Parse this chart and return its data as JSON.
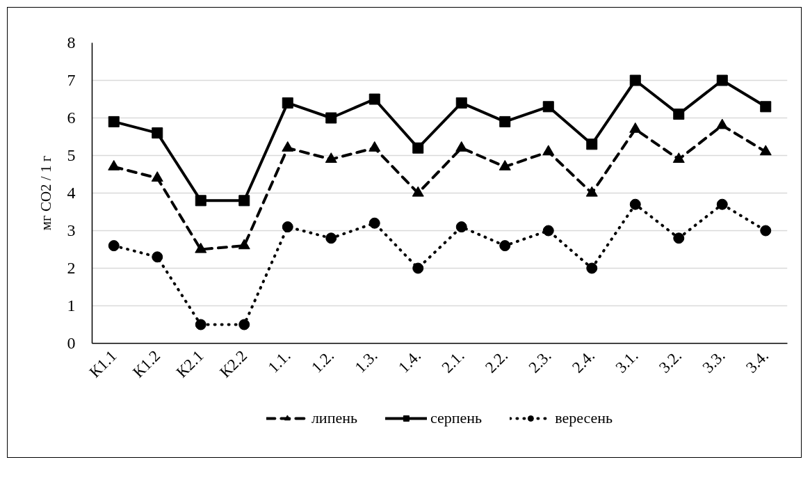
{
  "chart_data": {
    "type": "line",
    "ylabel": "мг CO2 / 1 г",
    "categories": [
      "К1.1",
      "К1.2",
      "К2.1",
      "К2.2",
      "1.1.",
      "1.2.",
      "1.3.",
      "1.4.",
      "2.1.",
      "2.2.",
      "2.3.",
      "2.4.",
      "3.1.",
      "3.2.",
      "3.3.",
      "3.4."
    ],
    "ylim": [
      0,
      8
    ],
    "yticks": [
      0,
      1,
      2,
      3,
      4,
      5,
      6,
      7,
      8
    ],
    "grid": "y",
    "legend": "bottom",
    "series": [
      {
        "name": "липень",
        "color": "#000000",
        "line_style": "dashed",
        "marker": "triangle",
        "values": [
          4.7,
          4.4,
          2.5,
          2.6,
          5.2,
          4.9,
          5.2,
          4.0,
          5.2,
          4.7,
          5.1,
          4.0,
          5.7,
          4.9,
          5.8,
          5.1
        ]
      },
      {
        "name": "серпень",
        "color": "#000000",
        "line_style": "solid",
        "marker": "square",
        "values": [
          5.9,
          5.6,
          3.8,
          3.8,
          6.4,
          6.0,
          6.5,
          5.2,
          6.4,
          5.9,
          6.3,
          5.3,
          7.0,
          6.1,
          7.0,
          6.3
        ]
      },
      {
        "name": "вересень",
        "color": "#000000",
        "line_style": "dotted",
        "marker": "circle",
        "values": [
          2.6,
          2.3,
          0.5,
          0.5,
          3.1,
          2.8,
          3.2,
          2.0,
          3.1,
          2.6,
          3.0,
          2.0,
          3.7,
          2.8,
          3.7,
          3.0
        ]
      }
    ]
  }
}
